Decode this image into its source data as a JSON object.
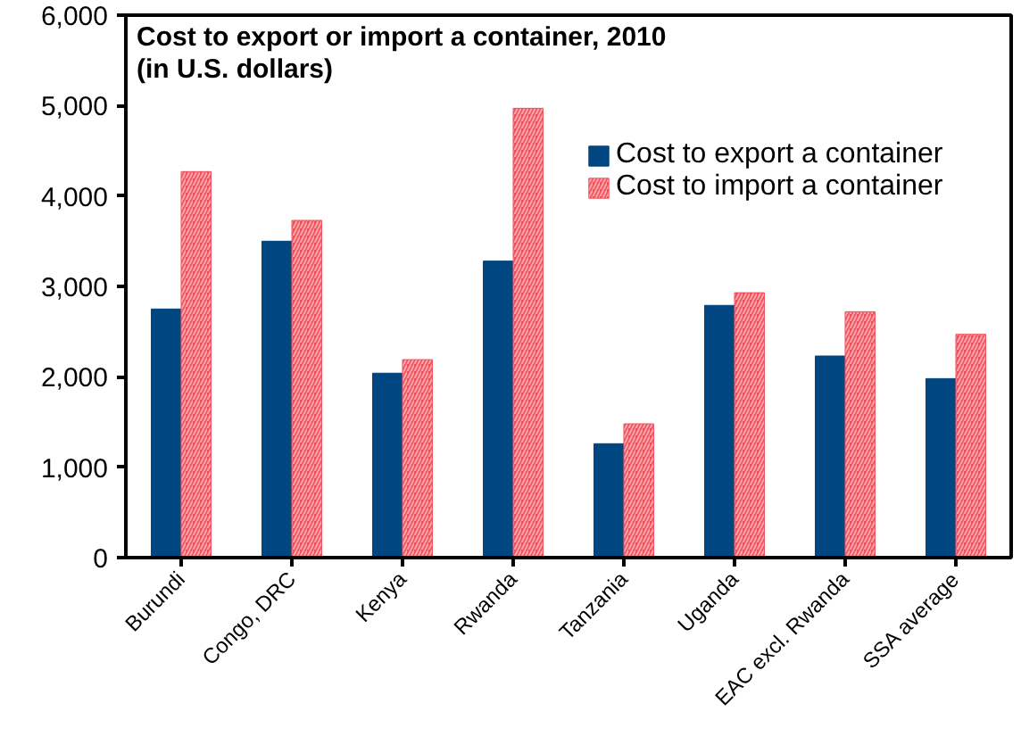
{
  "chart_data": {
    "type": "bar",
    "title": "Cost to export or import a container, 2010",
    "subtitle": "(in U.S. dollars)",
    "categories": [
      "Burundi",
      "Congo, DRC",
      "Kenya",
      "Rwanda",
      "Tanzania",
      "Uganda",
      "EAC excl. Rwanda",
      "SSA average"
    ],
    "series": [
      {
        "name": "Cost to export a container",
        "color": "#004680",
        "values": [
          2750,
          3500,
          2040,
          3280,
          1260,
          2790,
          2230,
          1980
        ]
      },
      {
        "name": "Cost to import a container",
        "color": "#f0505a",
        "values": [
          4270,
          3730,
          2190,
          4970,
          1480,
          2930,
          2720,
          2470
        ]
      }
    ],
    "ylim": [
      0,
      6000
    ],
    "yticks": [
      {
        "value": 0,
        "label": "0"
      },
      {
        "value": 1000,
        "label": "1,000"
      },
      {
        "value": 2000,
        "label": "2,000"
      },
      {
        "value": 3000,
        "label": "3,000"
      },
      {
        "value": 4000,
        "label": "4,000"
      },
      {
        "value": 5000,
        "label": "5,000"
      },
      {
        "value": 6000,
        "label": "6,000"
      }
    ],
    "grid": false,
    "legend": "top right"
  }
}
